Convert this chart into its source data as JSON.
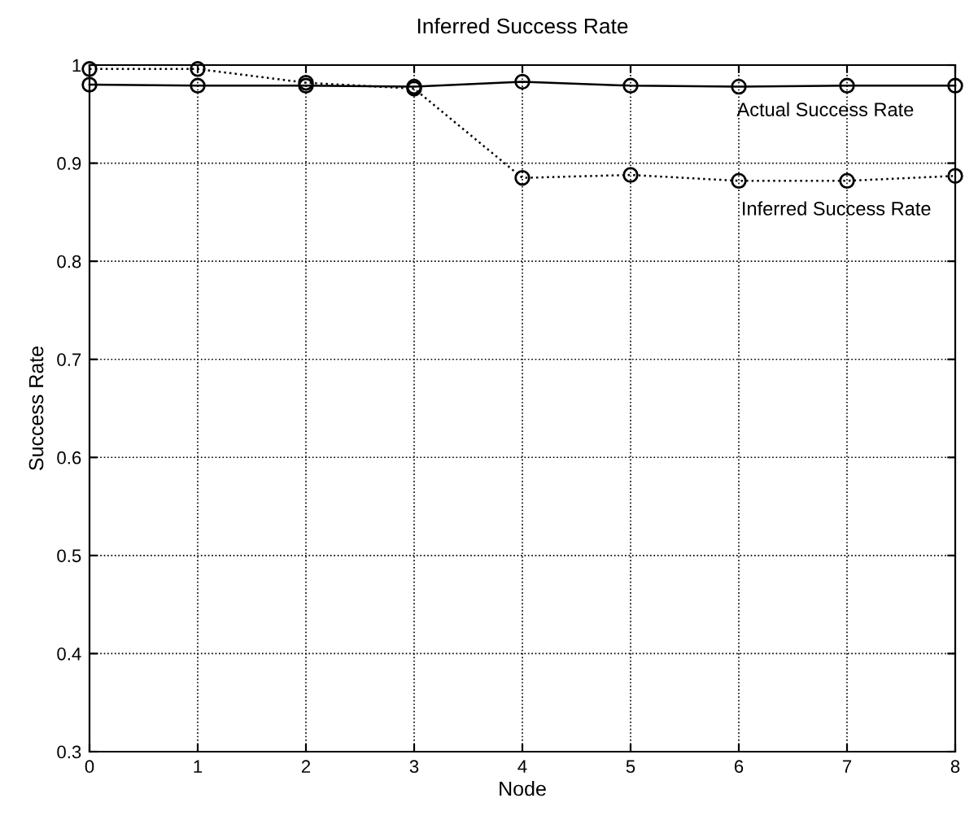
{
  "chart_data": {
    "type": "line",
    "title": "Inferred Success Rate",
    "xlabel": "Node",
    "ylabel": "Success Rate",
    "x": [
      0,
      1,
      2,
      3,
      4,
      5,
      6,
      7,
      8
    ],
    "series": [
      {
        "name": "Actual Success Rate",
        "color": "#000000",
        "line_style": "solid",
        "values": [
          0.98,
          0.979,
          0.979,
          0.978,
          0.983,
          0.979,
          0.978,
          0.979,
          0.979
        ]
      },
      {
        "name": "Inferred Success Rate",
        "color": "#000000",
        "line_style": "dotted",
        "values": [
          0.996,
          0.996,
          0.982,
          0.976,
          0.885,
          0.888,
          0.882,
          0.882,
          0.887
        ]
      }
    ],
    "marker": "circle",
    "grid": true,
    "legend": false,
    "xlim": [
      0,
      8
    ],
    "xticks": [
      0,
      1,
      2,
      3,
      4,
      5,
      6,
      7,
      8
    ],
    "ylim": [
      0.3,
      1
    ],
    "yticks": [
      0.3,
      0.4,
      0.5,
      0.6,
      0.7,
      0.8,
      0.9,
      1
    ]
  }
}
